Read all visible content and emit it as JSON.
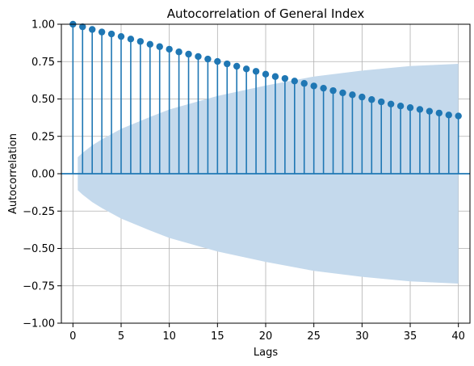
{
  "chart_data": {
    "type": "scatter",
    "title": "Autocorrelation of General Index",
    "xlabel": "Lags",
    "ylabel": "Autocorrelation",
    "xlim": [
      -1.2,
      41.2
    ],
    "ylim": [
      -1.0,
      1.0
    ],
    "x_ticks": [
      0,
      5,
      10,
      15,
      20,
      25,
      30,
      35,
      40
    ],
    "y_ticks": [
      -1.0,
      -0.75,
      -0.5,
      -0.25,
      0.0,
      0.25,
      0.5,
      0.75,
      1.0
    ],
    "x_tick_labels": [
      "0",
      "5",
      "10",
      "15",
      "20",
      "25",
      "30",
      "35",
      "40"
    ],
    "y_tick_labels": [
      "−1.00",
      "−0.75",
      "−0.50",
      "−0.25",
      "0.00",
      "0.25",
      "0.50",
      "0.75",
      "1.00"
    ],
    "grid": true,
    "lags": [
      0,
      1,
      2,
      3,
      4,
      5,
      6,
      7,
      8,
      9,
      10,
      11,
      12,
      13,
      14,
      15,
      16,
      17,
      18,
      19,
      20,
      21,
      22,
      23,
      24,
      25,
      26,
      27,
      28,
      29,
      30,
      31,
      32,
      33,
      34,
      35,
      36,
      37,
      38,
      39,
      40
    ],
    "values": [
      1.0,
      0.983,
      0.965,
      0.948,
      0.935,
      0.918,
      0.901,
      0.885,
      0.866,
      0.85,
      0.833,
      0.815,
      0.8,
      0.784,
      0.767,
      0.751,
      0.735,
      0.719,
      0.701,
      0.685,
      0.666,
      0.65,
      0.637,
      0.62,
      0.604,
      0.587,
      0.572,
      0.556,
      0.541,
      0.528,
      0.513,
      0.496,
      0.481,
      0.466,
      0.453,
      0.442,
      0.43,
      0.418,
      0.406,
      0.393,
      0.386
    ],
    "confidence_band": {
      "x": [
        0.5,
        1,
        2,
        3,
        5,
        8,
        10,
        15,
        20,
        25,
        30,
        35,
        40
      ],
      "upper": [
        0.11,
        0.14,
        0.19,
        0.23,
        0.3,
        0.38,
        0.43,
        0.52,
        0.59,
        0.65,
        0.69,
        0.72,
        0.735
      ]
    },
    "colors": {
      "stem": "#1f77b4",
      "marker": "#1f77b4",
      "band": "#c4d9ec",
      "zero_line": "#1f77b4",
      "grid": "#b0b0b0"
    }
  }
}
